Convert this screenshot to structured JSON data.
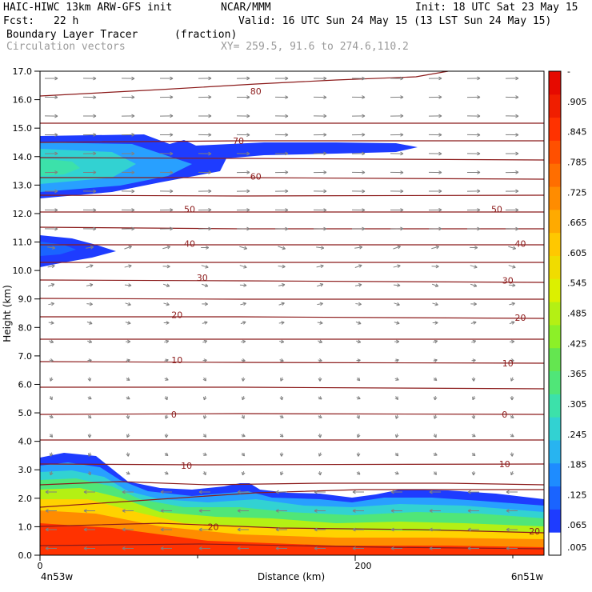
{
  "header": {
    "model": "HAIC-HIWC 13km ARW-GFS init",
    "org": "NCAR/MMM",
    "init": "Init: 18 UTC Sat 23 May 15",
    "fcst_label": "Fcst:",
    "fcst_value": "22 h",
    "valid": "Valid: 16 UTC Sun 24 May 15 (13 LST Sun 24 May 15)",
    "field": "Boundary Layer Tracer",
    "units": "(fraction)",
    "vectors": "Circulation vectors",
    "xy": "XY= 259.5, 91.6 to 274.6,110.2"
  },
  "colors": {
    "contour": "#8b1a1a",
    "vector": "#808080",
    "colorbar": [
      "#ffffff",
      "#1e3cff",
      "#1a64ff",
      "#1e8cff",
      "#28b4f0",
      "#32d2d2",
      "#3ce1aa",
      "#50e678",
      "#64e650",
      "#8cf028",
      "#b4f014",
      "#dcf000",
      "#f0dc00",
      "#ffc800",
      "#ffaa00",
      "#ff8c00",
      "#ff6e00",
      "#ff5000",
      "#ff3200",
      "#f01e00",
      "#e60a00"
    ]
  },
  "chart_data": {
    "type": "heatmap",
    "xlabel": "Distance (km)",
    "ylabel": "Height (km)",
    "xlim": [
      0,
      320
    ],
    "ylim": [
      0.0,
      17.0
    ],
    "x_ticks": [
      "0",
      "200"
    ],
    "y_ticks": [
      "0.0",
      "1.0",
      "2.0",
      "3.0",
      "4.0",
      "5.0",
      "6.0",
      "7.0",
      "8.0",
      "9.0",
      "10.0",
      "11.0",
      "12.0",
      "13.0",
      "14.0",
      "15.0",
      "16.0",
      "17.0"
    ],
    "x_endpoints": [
      "4n53w",
      "6n51w"
    ],
    "colorbar_labels": [
      "-",
      ".905",
      ".845",
      ".785",
      ".725",
      ".665",
      ".605",
      ".545",
      ".485",
      ".425",
      ".365",
      ".305",
      ".245",
      ".185",
      ".125",
      ".065",
      ".005"
    ],
    "contour_labels": [
      {
        "text": "80",
        "x": 137,
        "y": 16.3
      },
      {
        "text": "70",
        "x": 126,
        "y": 14.55
      },
      {
        "text": "60",
        "x": 137,
        "y": 13.3
      },
      {
        "text": "50",
        "x": 95,
        "y": 12.15
      },
      {
        "text": "50",
        "x": 290,
        "y": 12.15
      },
      {
        "text": "40",
        "x": 95,
        "y": 10.95
      },
      {
        "text": "40",
        "x": 305,
        "y": 10.95
      },
      {
        "text": "30",
        "x": 103,
        "y": 9.75
      },
      {
        "text": "30",
        "x": 297,
        "y": 9.65
      },
      {
        "text": "20",
        "x": 87,
        "y": 8.45
      },
      {
        "text": "20",
        "x": 305,
        "y": 8.35
      },
      {
        "text": "10",
        "x": 87,
        "y": 6.85
      },
      {
        "text": "10",
        "x": 297,
        "y": 6.75
      },
      {
        "text": "0",
        "x": 85,
        "y": 4.95
      },
      {
        "text": "0",
        "x": 295,
        "y": 4.95
      },
      {
        "text": "10",
        "x": 93,
        "y": 3.15
      },
      {
        "text": "10",
        "x": 295,
        "y": 3.2
      },
      {
        "text": "20",
        "x": 110,
        "y": 1.0
      },
      {
        "text": "20",
        "x": 314,
        "y": 0.85
      }
    ]
  }
}
